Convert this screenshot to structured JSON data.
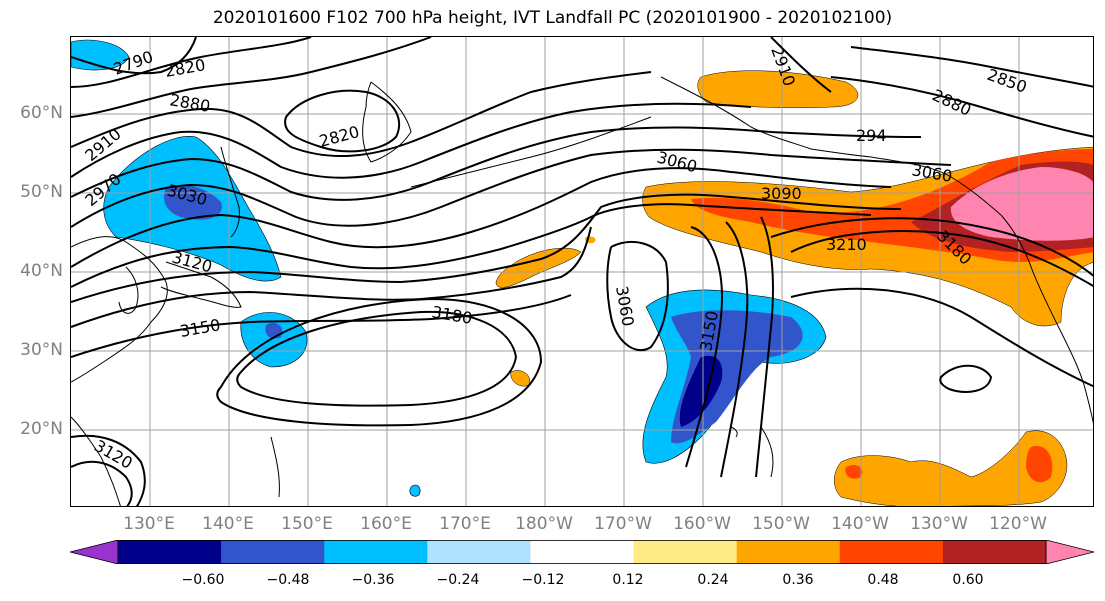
{
  "title": "2020101600 F102 700 hPa height, IVT Landfall PC (2020101900 - 2020102100)",
  "lat_labels": [
    "60°N",
    "50°N",
    "40°N",
    "30°N",
    "20°N"
  ],
  "lon_labels": [
    "130°E",
    "140°E",
    "150°E",
    "160°E",
    "170°E",
    "180°W",
    "170°W",
    "160°W",
    "150°W",
    "140°W",
    "130°W",
    "120°W"
  ],
  "colorbar": {
    "colors": [
      "#9933cc",
      "#00008b",
      "#3355cc",
      "#00bfff",
      "#b0e2ff",
      "#ffffff",
      "#ffeb85",
      "#ffa500",
      "#ff4500",
      "#b22222",
      "#ff85b0"
    ],
    "tick_labels": [
      "−0.60",
      "−0.48",
      "−0.36",
      "−0.24",
      "−0.12",
      "0.12",
      "0.24",
      "0.36",
      "0.48",
      "0.60"
    ]
  },
  "contour_labels": {
    "c2790": "2790",
    "c2820a": "2820",
    "c2820b": "2820",
    "c2880a": "2880",
    "c2880b": "2880",
    "c2910a": "2910",
    "c2910b": "2910",
    "c2970": "2970",
    "c3030": "3030",
    "c3060a": "3060",
    "c3060b": "3060",
    "c3090": "3090",
    "c3120a": "3120",
    "c3120b": "3120",
    "c3150": "3150",
    "c3180a": "3180",
    "c3180b": "3180",
    "c3210": "3210",
    "c3150b": "3150",
    "c2850": "2850",
    "c2940": "294",
    "c3060c": "3060"
  },
  "colors": {
    "grid": "#a0a0a0",
    "axis_label": "#808080",
    "coast": "#000000"
  }
}
